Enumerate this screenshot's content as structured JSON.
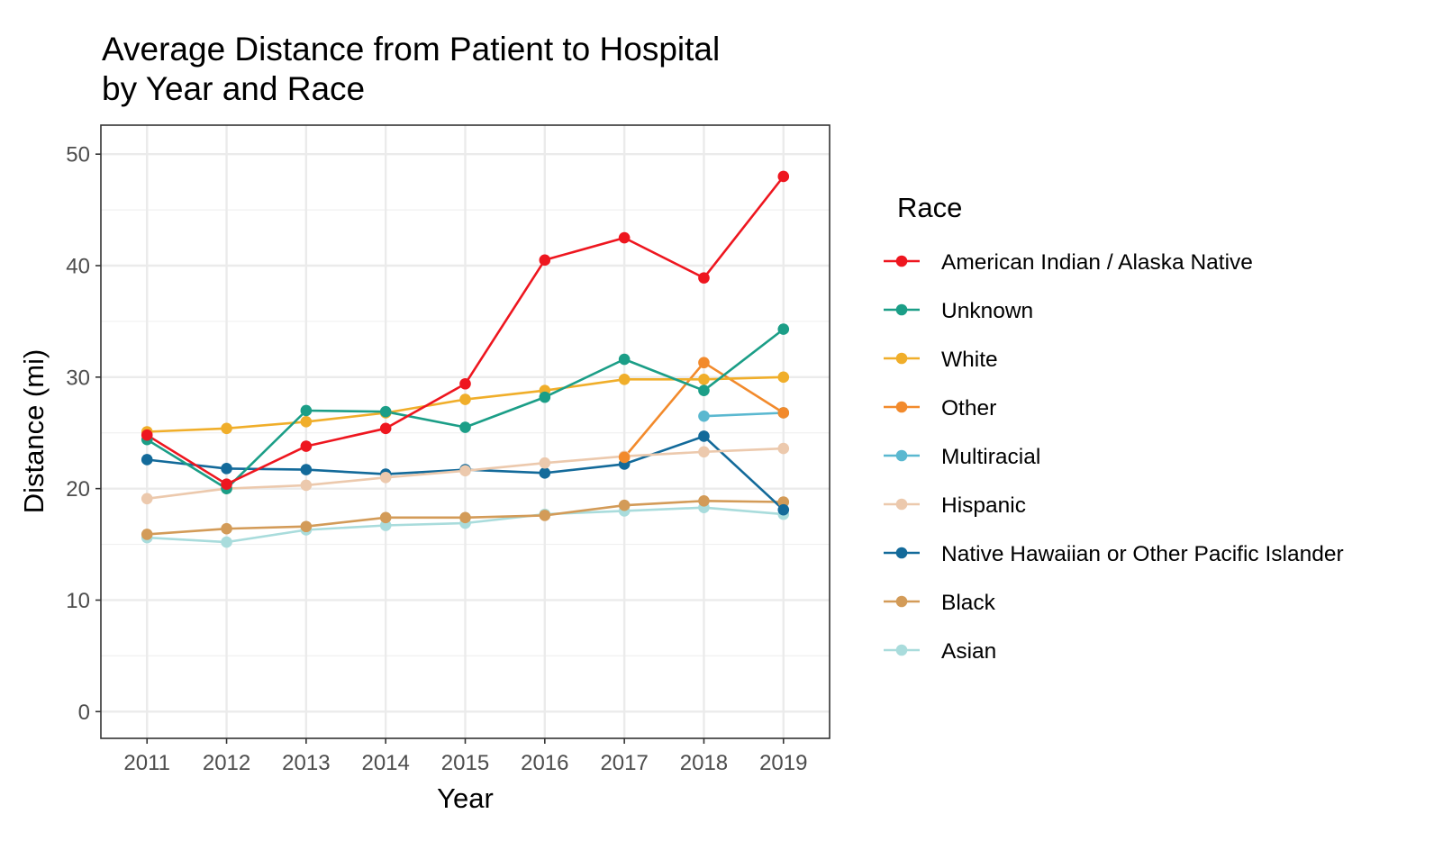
{
  "chart_data": {
    "type": "line",
    "title": [
      "Average Distance from Patient to Hospital",
      "by Year and Race"
    ],
    "xlabel": "Year",
    "ylabel": "Distance (mi)",
    "x": [
      2011,
      2012,
      2013,
      2014,
      2015,
      2016,
      2017,
      2018,
      2019
    ],
    "xlim": [
      2010.42,
      2019.58
    ],
    "ylim": [
      -2.4,
      52.6
    ],
    "yticks": [
      0,
      10,
      20,
      30,
      40,
      50
    ],
    "grid": true,
    "legend": {
      "title": "Race",
      "position": "right"
    },
    "series": [
      {
        "name": "American Indian / Alaska Native",
        "color": "#ee161f",
        "values": [
          24.8,
          20.4,
          23.8,
          25.4,
          29.4,
          40.5,
          42.5,
          38.9,
          48.0
        ]
      },
      {
        "name": "Unknown",
        "color": "#1b9e87",
        "values": [
          24.4,
          20.0,
          27.0,
          26.9,
          25.5,
          28.2,
          31.6,
          28.8,
          34.3
        ]
      },
      {
        "name": "White",
        "color": "#f0ae2a",
        "values": [
          25.1,
          25.4,
          26.0,
          26.8,
          28.0,
          28.8,
          29.8,
          29.8,
          30.0
        ]
      },
      {
        "name": "Other",
        "color": "#f28a2c",
        "values": [
          null,
          null,
          null,
          null,
          null,
          null,
          22.8,
          31.3,
          26.8
        ]
      },
      {
        "name": "Multiracial",
        "color": "#5ab8d0",
        "values": [
          null,
          null,
          null,
          null,
          null,
          null,
          null,
          26.5,
          26.8
        ]
      },
      {
        "name": "Hispanic",
        "color": "#ecc9ad",
        "values": [
          19.1,
          20.0,
          20.3,
          21.0,
          21.6,
          22.3,
          22.9,
          23.3,
          23.6
        ]
      },
      {
        "name": "Native Hawaiian or Other Pacific Islander",
        "color": "#136a9a",
        "values": [
          22.6,
          21.8,
          21.7,
          21.3,
          21.7,
          21.4,
          22.2,
          24.7,
          18.1
        ]
      },
      {
        "name": "Black",
        "color": "#d39b58",
        "values": [
          15.9,
          16.4,
          16.6,
          17.4,
          17.4,
          17.6,
          18.5,
          18.9,
          18.8
        ]
      },
      {
        "name": "Asian",
        "color": "#a9dcdc",
        "values": [
          15.6,
          15.2,
          16.3,
          16.7,
          16.9,
          17.7,
          18.0,
          18.3,
          17.7
        ]
      }
    ]
  }
}
